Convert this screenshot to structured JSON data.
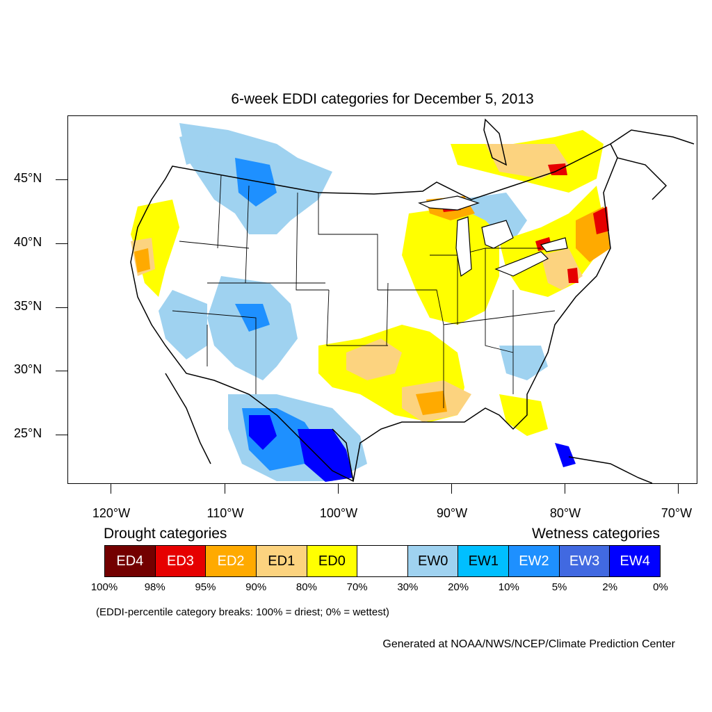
{
  "title": "6-week EDDI categories for December 5, 2013",
  "lat_labels": [
    "45°N",
    "40°N",
    "35°N",
    "30°N",
    "25°N"
  ],
  "lon_labels": [
    "120°W",
    "110°W",
    "100°W",
    "90°W",
    "80°W",
    "70°W"
  ],
  "legend": {
    "drought_heading": "Drought categories",
    "wetness_heading": "Wetness categories",
    "categories": [
      {
        "label": "ED4",
        "color": "#730000",
        "text_color": "#ffffff"
      },
      {
        "label": "ED3",
        "color": "#e60000",
        "text_color": "#ffffff"
      },
      {
        "label": "ED2",
        "color": "#ffaa00",
        "text_color": "#ffffff"
      },
      {
        "label": "ED1",
        "color": "#fcd37f",
        "text_color": "#000000"
      },
      {
        "label": "ED0",
        "color": "#ffff00",
        "text_color": "#000000"
      },
      {
        "label": "",
        "color": "#ffffff",
        "text_color": "#000000"
      },
      {
        "label": "EW0",
        "color": "#9fd2f0",
        "text_color": "#000000"
      },
      {
        "label": "EW1",
        "color": "#00bfff",
        "text_color": "#000000"
      },
      {
        "label": "EW2",
        "color": "#1e90ff",
        "text_color": "#ffffff"
      },
      {
        "label": "EW3",
        "color": "#4169e1",
        "text_color": "#ffffff"
      },
      {
        "label": "EW4",
        "color": "#0000ff",
        "text_color": "#ffffff"
      }
    ],
    "breaks": [
      "100%",
      "98%",
      "95%",
      "90%",
      "80%",
      "70%",
      "30%",
      "20%",
      "10%",
      "5%",
      "2%",
      "0%"
    ],
    "breaks_note": "(EDDI-percentile category breaks: 100% = driest; 0% = wettest)"
  },
  "credit": "Generated at NOAA/NWS/NCEP/Climate Prediction Center"
}
